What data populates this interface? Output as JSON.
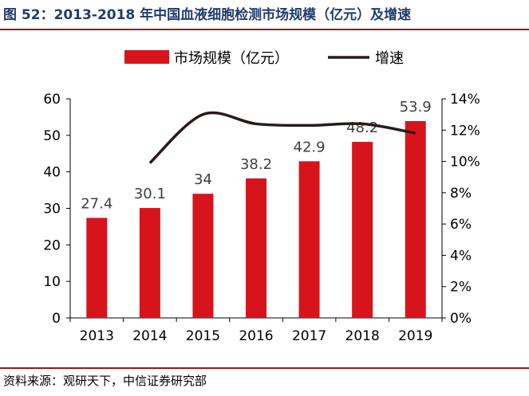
{
  "figure": {
    "title": "图 52：2013-2018 年中国血液细胞检测市场规模（亿元）及增速",
    "source": "资料来源：观研天下，中信证券研究部"
  },
  "chart_data": {
    "type": "bar",
    "title": "",
    "categories": [
      "2013",
      "2014",
      "2015",
      "2016",
      "2017",
      "2018",
      "2019"
    ],
    "series": [
      {
        "name": "市场规模（亿元）",
        "type": "bar",
        "axis": "left",
        "color": "#d7141c",
        "values": [
          27.4,
          30.1,
          34,
          38.2,
          42.9,
          48.2,
          53.9
        ],
        "labels": [
          "27.4",
          "30.1",
          "34",
          "38.2",
          "42.9",
          "48.2",
          "53.9"
        ]
      },
      {
        "name": "增速",
        "type": "line",
        "axis": "right",
        "color": "#2a1a1a",
        "values": [
          null,
          9.9,
          13.0,
          12.4,
          12.3,
          12.4,
          11.8
        ]
      }
    ],
    "y_left": {
      "lim": [
        0,
        60
      ],
      "ticks": [
        0,
        10,
        20,
        30,
        40,
        50,
        60
      ],
      "tick_labels": [
        "0",
        "10",
        "20",
        "30",
        "40",
        "50",
        "60"
      ]
    },
    "y_right": {
      "lim": [
        0,
        14
      ],
      "unit": "%",
      "ticks": [
        0,
        2,
        4,
        6,
        8,
        10,
        12,
        14
      ],
      "tick_labels": [
        "0%",
        "2%",
        "4%",
        "6%",
        "8%",
        "10%",
        "12%",
        "14%"
      ]
    },
    "legend": {
      "placement": "top-center"
    },
    "grid": false
  }
}
